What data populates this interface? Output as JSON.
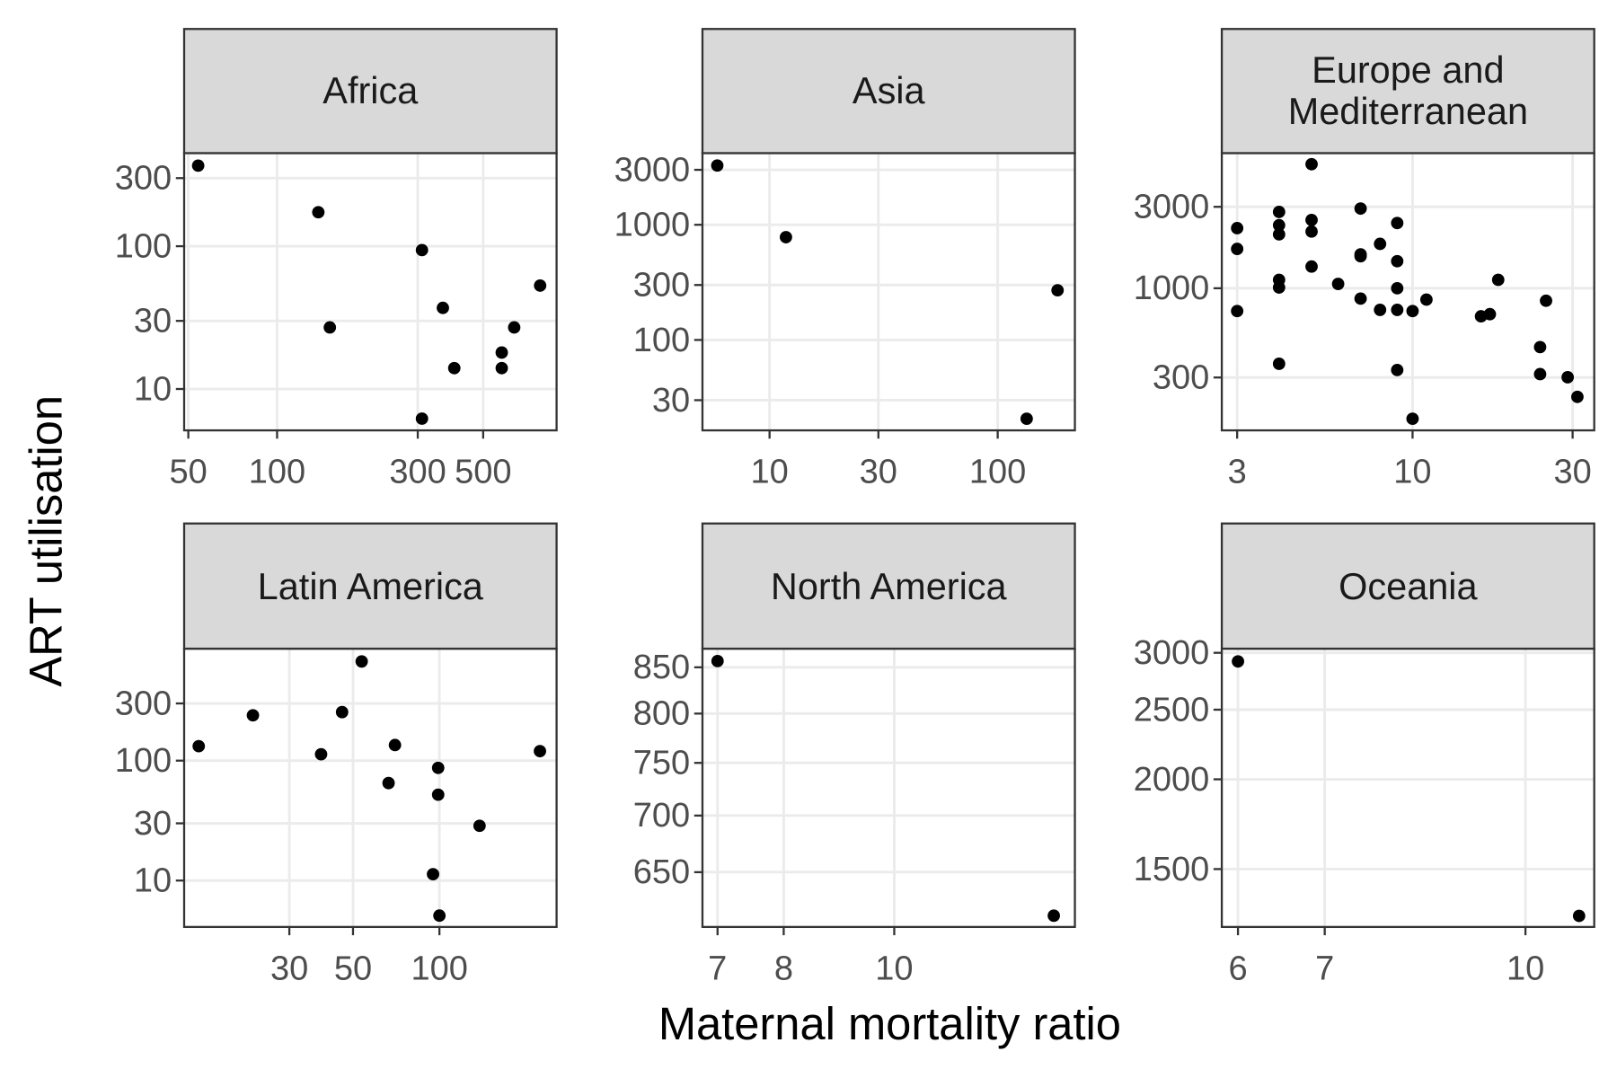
{
  "x_label": "Maternal mortality ratio",
  "y_label": "ART utilisation",
  "chart_data": [
    {
      "type": "scatter",
      "title": "Africa",
      "x_scale": "log",
      "y_scale": "log",
      "grid": true,
      "color": "#000000",
      "x": [
        54,
        138,
        151,
        310,
        365,
        399,
        578,
        578,
        637,
        780,
        310
      ],
      "values": [
        367,
        173,
        27,
        94,
        37,
        14,
        18,
        14,
        27,
        53,
        6.2
      ],
      "xlim": [
        48.4,
        887
      ],
      "xticks": [
        50,
        100,
        300,
        500
      ],
      "ylim": [
        5.13,
        449
      ],
      "yticks": [
        10,
        30,
        100,
        300
      ]
    },
    {
      "type": "scatter",
      "title": "Asia",
      "x_scale": "log",
      "y_scale": "log",
      "grid": true,
      "color": "#000000",
      "x": [
        5.9,
        11.8,
        183,
        134
      ],
      "values": [
        3270,
        780,
        270,
        20.7
      ],
      "xlim": [
        5.08,
        218
      ],
      "xticks": [
        10,
        30,
        100
      ],
      "ylim": [
        16.4,
        4190
      ],
      "yticks": [
        30,
        100,
        300,
        1000,
        3000
      ]
    },
    {
      "type": "scatter",
      "title": "Europe and\nMediterranean",
      "x_scale": "log",
      "y_scale": "log",
      "grid": true,
      "color": "#000000",
      "x": [
        3,
        3,
        3,
        4,
        4,
        4,
        4,
        4,
        4,
        5,
        5,
        5,
        5,
        6,
        7,
        7,
        7,
        7,
        8,
        8,
        9,
        9,
        9,
        9,
        9,
        10,
        11,
        16,
        17,
        18,
        24,
        24,
        25,
        29,
        31,
        10
      ],
      "values": [
        2250,
        1700,
        735,
        2800,
        2340,
        2070,
        1120,
        1010,
        361,
        5330,
        2510,
        2150,
        1340,
        1060,
        2930,
        1580,
        1540,
        870,
        1820,
        747,
        2410,
        1440,
        1000,
        747,
        332,
        735,
        858,
        685,
        705,
        1120,
        452,
        314,
        845,
        301,
        231,
        172
      ],
      "xlim": [
        2.7,
        34.8
      ],
      "xticks": [
        3,
        10,
        30
      ],
      "ylim": [
        147,
        6190
      ],
      "yticks": [
        300,
        1000,
        3000
      ]
    },
    {
      "type": "scatter",
      "title": "Latin America",
      "x_scale": "log",
      "y_scale": "log",
      "grid": true,
      "color": "#000000",
      "x": [
        14.5,
        22.4,
        38.7,
        45.8,
        53.6,
        66.5,
        70,
        99,
        99,
        95,
        100,
        138,
        224
      ],
      "values": [
        132,
        239,
        113,
        254,
        672,
        65,
        135,
        87,
        52,
        11.3,
        5.1,
        28.6,
        120
      ],
      "xlim": [
        12.9,
        256
      ],
      "xticks": [
        30,
        50,
        100
      ],
      "ylim": [
        4.1,
        859
      ],
      "yticks": [
        10,
        30,
        100,
        300
      ]
    },
    {
      "type": "scatter",
      "title": "North America",
      "x_scale": "log",
      "y_scale": "log",
      "grid": true,
      "color": "#000000",
      "x": [
        7,
        13.8
      ],
      "values": [
        857,
        614
      ],
      "xlim": [
        6.79,
        14.4
      ],
      "xticks": [
        7,
        8,
        10
      ],
      "ylim": [
        605,
        871
      ],
      "yticks": [
        650,
        700,
        750,
        800,
        850
      ]
    },
    {
      "type": "scatter",
      "title": "Oceania",
      "x_scale": "log",
      "y_scale": "log",
      "grid": true,
      "color": "#000000",
      "x": [
        6,
        11
      ],
      "values": [
        2918,
        1291
      ],
      "xlim": [
        5.83,
        11.3
      ],
      "xticks": [
        6,
        7,
        10
      ],
      "ylim": [
        1246,
        3040
      ],
      "yticks": [
        1500,
        2000,
        2500,
        3000
      ]
    }
  ]
}
